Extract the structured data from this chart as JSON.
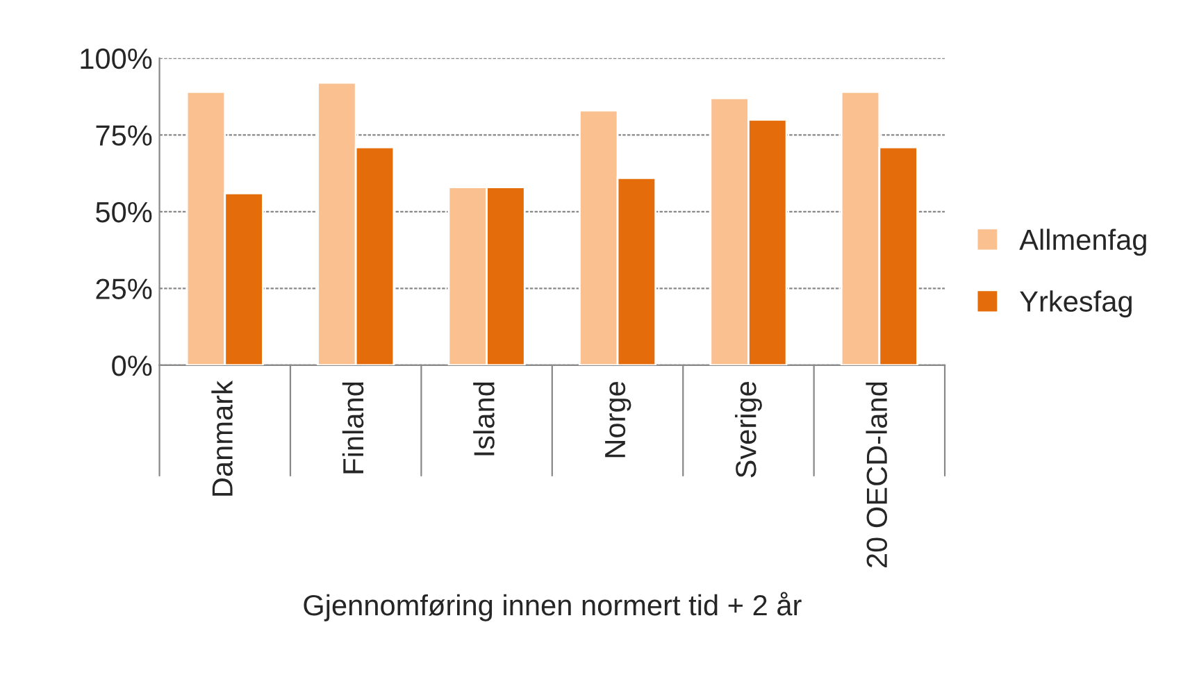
{
  "chart_data": {
    "type": "bar",
    "xlabel": "Gjennomføring innen normert tid + 2 år",
    "categories": [
      "Danmark",
      "Finland",
      "Island",
      "Norge",
      "Sverige",
      "20 OECD-land"
    ],
    "series": [
      {
        "name": "Allmenfag",
        "color": "#fac090",
        "values": [
          89,
          92,
          58,
          83,
          87,
          89
        ]
      },
      {
        "name": "Yrkesfag",
        "color": "#e46c0a",
        "values": [
          56,
          71,
          58,
          61,
          80,
          71
        ]
      }
    ],
    "ylim": [
      0,
      100
    ],
    "yticks": [
      {
        "value": 0,
        "label": "0%"
      },
      {
        "value": 25,
        "label": "25%"
      },
      {
        "value": 50,
        "label": "50%"
      },
      {
        "value": 75,
        "label": "75%"
      },
      {
        "value": 100,
        "label": "100%"
      }
    ],
    "grid": "y",
    "legend": "right"
  }
}
